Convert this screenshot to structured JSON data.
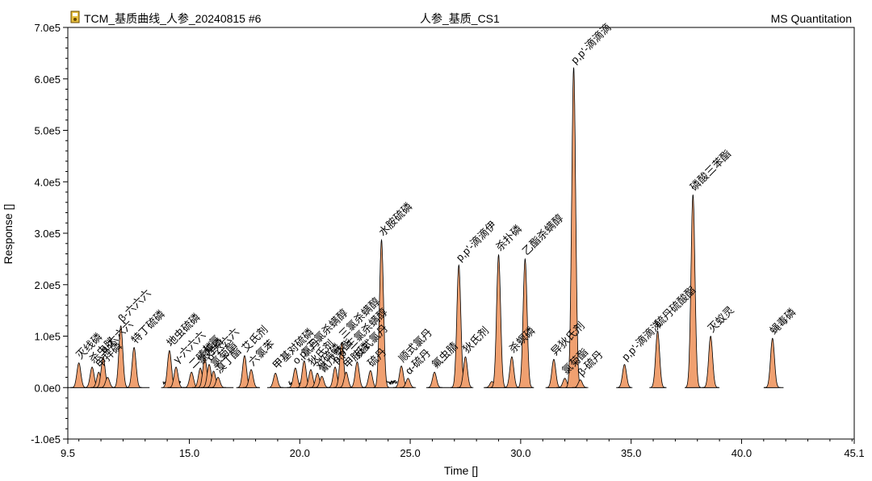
{
  "header": {
    "title_left": "TCM_基质曲线_人参_20240815 #6",
    "title_center": "人参_基质_CS1",
    "title_right": "MS Quantitation",
    "icon": "app-icon"
  },
  "chart_data": {
    "type": "line",
    "title": "人参_基质_CS1",
    "xlabel": "Time []",
    "ylabel": "Response []",
    "xlim": [
      9.5,
      45.1
    ],
    "ylim": [
      -100000,
      700000
    ],
    "xticks": [
      "9.5",
      "15.0",
      "20.0",
      "25.0",
      "30.0",
      "35.0",
      "40.0",
      "45.1"
    ],
    "xtick_values": [
      9.5,
      15.0,
      20.0,
      25.0,
      30.0,
      35.0,
      40.0,
      45.1
    ],
    "yticks": [
      "-1.0e5",
      "0.0e0",
      "1.0e5",
      "2.0e5",
      "3.0e5",
      "4.0e5",
      "5.0e5",
      "6.0e5",
      "7.0e5"
    ],
    "ytick_values": [
      -100000,
      0,
      100000,
      200000,
      300000,
      400000,
      500000,
      600000,
      700000
    ],
    "peak_color": "#f0a070",
    "peak_edge_color": "#000000",
    "peaks": [
      {
        "t": 10.0,
        "h": 48000,
        "label": "灭线磷"
      },
      {
        "t": 10.6,
        "h": 40000,
        "label": "杀虫脒"
      },
      {
        "t": 10.9,
        "h": 30000,
        "label": "甲拌磷"
      },
      {
        "t": 11.1,
        "h": 60000,
        "label": "a-六六六"
      },
      {
        "t": 11.3,
        "h": 20000,
        "label": ""
      },
      {
        "t": 11.9,
        "h": 120000,
        "label": "β-六六六"
      },
      {
        "t": 12.5,
        "h": 78000,
        "label": "特丁硫磷"
      },
      {
        "t": 14.1,
        "h": 72000,
        "label": "地虫硫磷"
      },
      {
        "t": 14.4,
        "h": 40000,
        "label": "γ-六六六"
      },
      {
        "t": 15.1,
        "h": 30000,
        "label": "二嗪磷"
      },
      {
        "t": 15.5,
        "h": 38000,
        "label": "氯唑磷"
      },
      {
        "t": 15.7,
        "h": 58000,
        "label": "七氯"
      },
      {
        "t": 15.9,
        "h": 45000,
        "label": "δ-六六六"
      },
      {
        "t": 16.1,
        "h": 32000,
        "label": "氯菊酯"
      },
      {
        "t": 16.3,
        "h": 20000,
        "label": "溴丁酯"
      },
      {
        "t": 17.5,
        "h": 62000,
        "label": "艾氏剂"
      },
      {
        "t": 17.8,
        "h": 35000,
        "label": "六氯苯"
      },
      {
        "t": 18.9,
        "h": 28000,
        "label": "甲基对硫磷"
      },
      {
        "t": 19.8,
        "h": 38000,
        "label": "o,p'-三氯杀螨醇"
      },
      {
        "t": 20.2,
        "h": 52000,
        "label": "氯丹"
      },
      {
        "t": 20.5,
        "h": 35000,
        "label": "狄氏剂"
      },
      {
        "t": 20.8,
        "h": 28000,
        "label": "对硫磷"
      },
      {
        "t": 21.0,
        "h": 22000,
        "label": "氰戊菊酯"
      },
      {
        "t": 21.6,
        "h": 40000,
        "label": "p,p'-三氯杀螨醇"
      },
      {
        "t": 21.9,
        "h": 88000,
        "label": "三氯杀螨醇"
      },
      {
        "t": 22.1,
        "h": 30000,
        "label": "甲胺磷"
      },
      {
        "t": 22.6,
        "h": 50000,
        "label": "反式氯丹"
      },
      {
        "t": 23.2,
        "h": 33000,
        "label": "硫丹"
      },
      {
        "t": 23.7,
        "h": 287000,
        "label": "水胺硫磷"
      },
      {
        "t": 24.6,
        "h": 42000,
        "label": "顺式氯丹"
      },
      {
        "t": 24.9,
        "h": 18000,
        "label": "α-硫丹"
      },
      {
        "t": 26.1,
        "h": 30000,
        "label": "氟虫腈"
      },
      {
        "t": 27.2,
        "h": 238000,
        "label": "p,p'-滴滴伊"
      },
      {
        "t": 27.5,
        "h": 60000,
        "label": "狄氏剂"
      },
      {
        "t": 28.7,
        "h": 12000,
        "label": ""
      },
      {
        "t": 29.0,
        "h": 258000,
        "label": "杀扑磷"
      },
      {
        "t": 29.6,
        "h": 60000,
        "label": "杀螟磷"
      },
      {
        "t": 30.2,
        "h": 250000,
        "label": "乙酯杀螨醇"
      },
      {
        "t": 31.5,
        "h": 55000,
        "label": "异狄氏剂"
      },
      {
        "t": 32.0,
        "h": 18000,
        "label": "氯菊酯"
      },
      {
        "t": 32.4,
        "h": 622000,
        "label": "p,p'-滴滴滴"
      },
      {
        "t": 32.7,
        "h": 15000,
        "label": "β-硫丹"
      },
      {
        "t": 34.7,
        "h": 45000,
        "label": "p,p'-滴滴涕"
      },
      {
        "t": 36.2,
        "h": 110000,
        "label": "硫丹硫酸酯"
      },
      {
        "t": 37.8,
        "h": 375000,
        "label": "磷酸三苯酯"
      },
      {
        "t": 38.6,
        "h": 100000,
        "label": "灭蚁灵"
      },
      {
        "t": 41.4,
        "h": 96000,
        "label": "蝇毒磷"
      }
    ]
  }
}
